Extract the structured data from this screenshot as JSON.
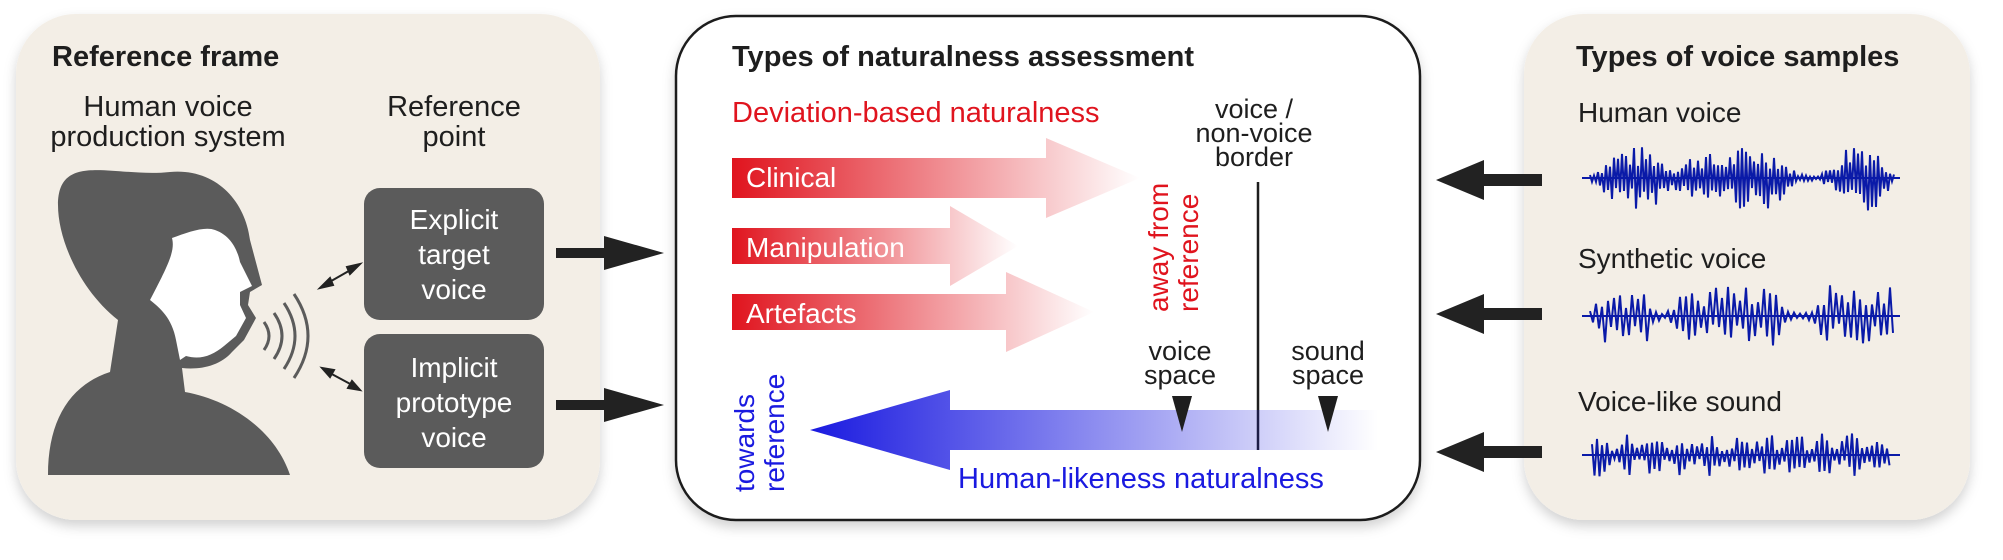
{
  "reference_frame": {
    "title": "Reference frame",
    "system_label": [
      "Human voice",
      "production system"
    ],
    "reference_point_label": [
      "Reference",
      "point"
    ],
    "explicit_box": [
      "Explicit",
      "target",
      "voice"
    ],
    "implicit_box": [
      "Implicit",
      "prototype",
      "voice"
    ]
  },
  "assessment": {
    "title": "Types of naturalness assessment",
    "deviation_title": "Deviation-based naturalness",
    "deviation_items": [
      "Clinical",
      "Manipulation",
      "Artefacts"
    ],
    "away_label": [
      "away from",
      "reference"
    ],
    "border_label": [
      "voice /",
      "non-voice",
      "border"
    ],
    "voice_space": [
      "voice",
      "space"
    ],
    "sound_space": [
      "sound",
      "space"
    ],
    "towards_label": [
      "towards",
      "reference"
    ],
    "human_likeness_title": "Human-likeness naturalness"
  },
  "samples": {
    "title": "Types of voice samples",
    "items": [
      "Human voice",
      "Synthetic voice",
      "Voice-like sound"
    ]
  },
  "colors": {
    "panel_bg": "#f3eee6",
    "box_gray": "#5b5b5b",
    "red": "#e0141e",
    "blue": "#1a1ae0",
    "wave_blue": "#0a1aa8"
  }
}
